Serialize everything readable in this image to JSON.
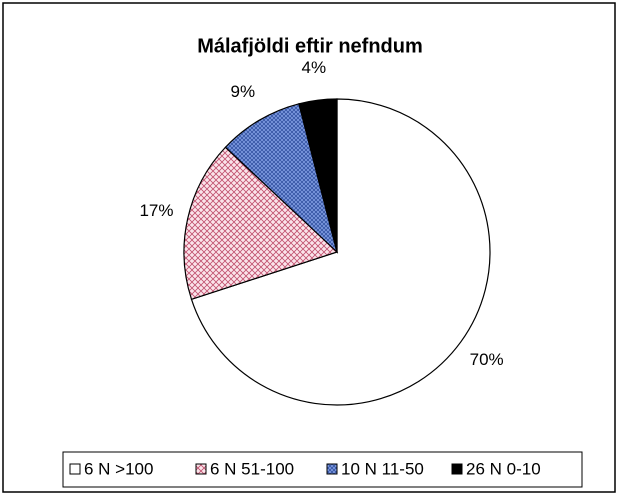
{
  "chart_data": {
    "type": "pie",
    "title": "Málafjöldi eftir nefndum",
    "categories": [
      "6 N >100",
      "6 N 51-100",
      "10 N 11-50",
      "26 N 0-10"
    ],
    "values": [
      70,
      17,
      9,
      4
    ],
    "value_labels": [
      "70%",
      "17%",
      "9%",
      "4%"
    ],
    "colors": [
      "#ffffff",
      "#f4c6d0",
      "#6f8fd8",
      "#000000"
    ],
    "legend": "bottom"
  }
}
